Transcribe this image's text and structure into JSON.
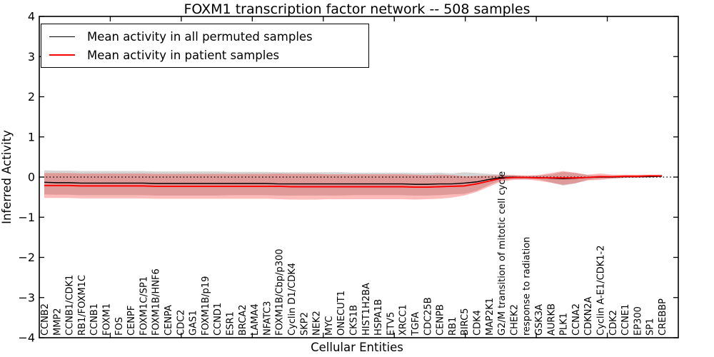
{
  "figure": {
    "title": "FOXM1 transcription factor network -- 508 samples",
    "xlabel": "Cellular Entities",
    "ylabel": "Inferred Activity"
  },
  "legend": {
    "items": [
      {
        "label": "Mean activity in all permuted samples",
        "color": "#000000"
      },
      {
        "label": "Mean activity in patient samples",
        "color": "#ff0000"
      }
    ]
  },
  "chart_data": {
    "type": "line",
    "title": "FOXM1 transcription factor network -- 508 samples",
    "xlabel": "Cellular Entities",
    "ylabel": "Inferred Activity",
    "ylim": [
      -4,
      4
    ],
    "y_ticks": [
      -4,
      -3,
      -2,
      -1,
      0,
      1,
      2,
      3,
      4
    ],
    "y_tick_labels": [
      "−4",
      "−3",
      "−2",
      "−1",
      "0",
      "1",
      "2",
      "3",
      "4"
    ],
    "grid": false,
    "zero_line_style": "dotted",
    "zero_line_color": "#000000",
    "legend_position": "upper left",
    "categories": [
      "CCNB2",
      "MMP2",
      "CCNB1/CDK1",
      "RB1/FOXM1C",
      "CCNB1",
      "FOXM1",
      "FOS",
      "CENPF",
      "FOXM1C/SP1",
      "FOXM1B/HNF6",
      "CENPA",
      "CDC2",
      "GAS1",
      "FOXM1B/p19",
      "CCND1",
      "ESR1",
      "BRCA2",
      "LAMA4",
      "NFATC3",
      "FOXM1B/Cbp/p300",
      "Cyclin D1/CDK4",
      "SKP2",
      "NEK2",
      "MYC",
      "ONECUT1",
      "CKS1B",
      "HIST1H2BA",
      "HSPA1B",
      "ETV5",
      "XRCC1",
      "TGFA",
      "CDC25B",
      "CENPB",
      "RB1",
      "BIRC5",
      "CDK4",
      "MAP2K1",
      "G2/M transition of mitotic cell cycle",
      "CHEK2",
      "response to radiation",
      "GSK3A",
      "AURKB",
      "PLK1",
      "CCNA2",
      "CDKN2A",
      "Cyclin A-E1/CDK1-2",
      "CDK2",
      "CCNE1",
      "EP300",
      "SP1",
      "CREBBP"
    ],
    "series": [
      {
        "name": "Mean activity in all permuted samples",
        "color": "#000000",
        "band_color": "rgba(100,100,100,0.28)",
        "values": [
          -0.13,
          -0.14,
          -0.14,
          -0.15,
          -0.15,
          -0.15,
          -0.15,
          -0.15,
          -0.15,
          -0.16,
          -0.16,
          -0.16,
          -0.16,
          -0.16,
          -0.16,
          -0.16,
          -0.16,
          -0.16,
          -0.16,
          -0.17,
          -0.17,
          -0.17,
          -0.17,
          -0.17,
          -0.17,
          -0.17,
          -0.17,
          -0.17,
          -0.17,
          -0.17,
          -0.18,
          -0.18,
          -0.17,
          -0.17,
          -0.15,
          -0.12,
          -0.06,
          -0.01,
          0.0,
          -0.01,
          -0.01,
          -0.03,
          -0.04,
          -0.03,
          -0.01,
          0.0,
          0.0,
          0.01,
          0.01,
          0.01,
          0.02
        ],
        "std": [
          0.3,
          0.3,
          0.3,
          0.3,
          0.3,
          0.3,
          0.3,
          0.3,
          0.3,
          0.3,
          0.3,
          0.3,
          0.3,
          0.3,
          0.3,
          0.29,
          0.29,
          0.29,
          0.29,
          0.29,
          0.29,
          0.29,
          0.29,
          0.29,
          0.29,
          0.28,
          0.28,
          0.28,
          0.28,
          0.28,
          0.28,
          0.28,
          0.28,
          0.26,
          0.27,
          0.22,
          0.14,
          0.07,
          0.05,
          0.04,
          0.05,
          0.1,
          0.17,
          0.13,
          0.06,
          0.04,
          0.03,
          0.03,
          0.02,
          0.02,
          0.02
        ]
      },
      {
        "name": "Mean activity in patient samples",
        "color": "#ff0000",
        "band_color": "rgba(255,0,0,0.27)",
        "values": [
          -0.21,
          -0.21,
          -0.21,
          -0.22,
          -0.22,
          -0.22,
          -0.22,
          -0.22,
          -0.22,
          -0.23,
          -0.23,
          -0.23,
          -0.23,
          -0.23,
          -0.23,
          -0.23,
          -0.23,
          -0.23,
          -0.23,
          -0.23,
          -0.24,
          -0.24,
          -0.24,
          -0.24,
          -0.24,
          -0.24,
          -0.24,
          -0.24,
          -0.24,
          -0.24,
          -0.25,
          -0.25,
          -0.24,
          -0.23,
          -0.22,
          -0.17,
          -0.1,
          -0.03,
          -0.01,
          -0.01,
          -0.02,
          -0.02,
          -0.02,
          -0.02,
          -0.01,
          0.01,
          0.01,
          0.02,
          0.02,
          0.03,
          0.03
        ],
        "std": [
          0.31,
          0.31,
          0.31,
          0.31,
          0.31,
          0.31,
          0.31,
          0.31,
          0.31,
          0.31,
          0.31,
          0.31,
          0.31,
          0.31,
          0.31,
          0.31,
          0.31,
          0.31,
          0.31,
          0.32,
          0.32,
          0.32,
          0.32,
          0.31,
          0.31,
          0.31,
          0.31,
          0.31,
          0.31,
          0.31,
          0.31,
          0.3,
          0.3,
          0.28,
          0.24,
          0.2,
          0.14,
          0.08,
          0.06,
          0.05,
          0.07,
          0.12,
          0.17,
          0.13,
          0.07,
          0.08,
          0.05,
          0.04,
          0.04,
          0.03,
          0.03
        ]
      }
    ]
  }
}
